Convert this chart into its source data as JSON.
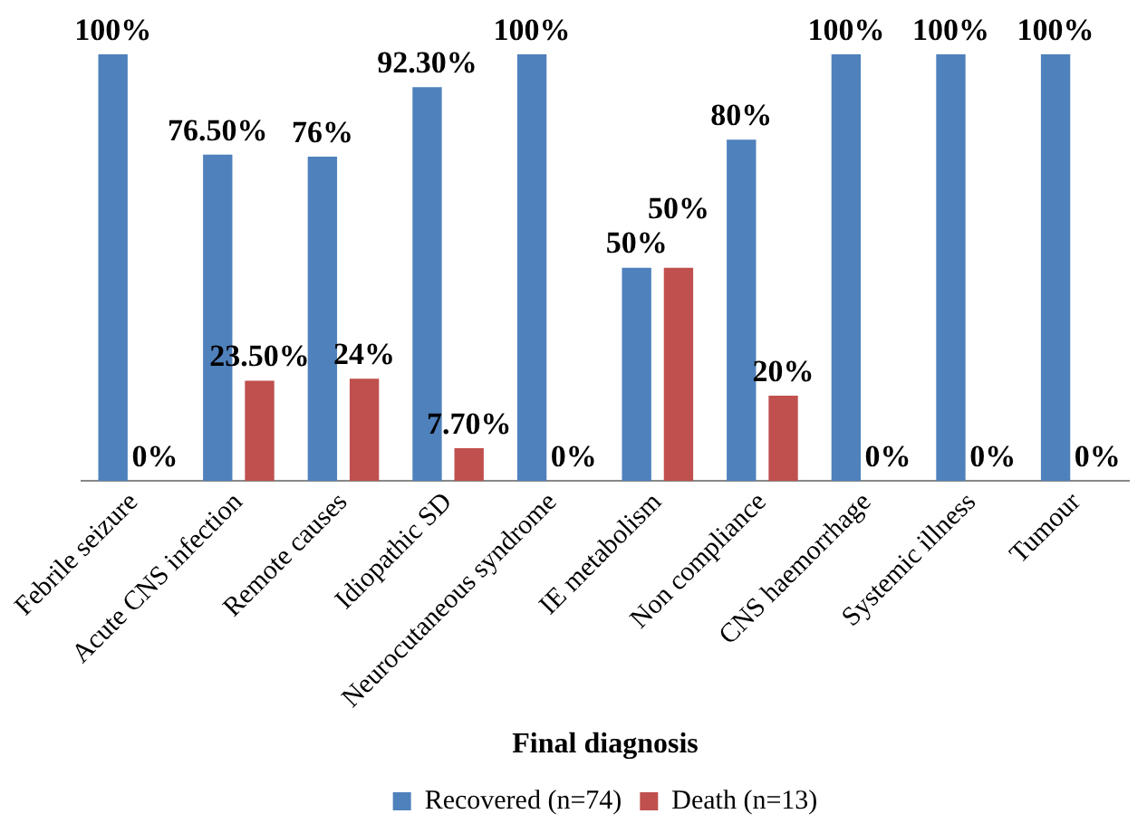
{
  "chart_data": {
    "type": "bar",
    "xlabel": "Final diagnosis",
    "categories": [
      "Febrile seizure",
      "Acute CNS infection",
      "Remote causes",
      "Idiopathic SD",
      "Neurocutaneous syndrome",
      "IE metabolism",
      "Non compliance",
      "CNS haemorrhage",
      "Systemic illness",
      "Tumour"
    ],
    "series": [
      {
        "name": "Recovered (n=74)",
        "color": "#4f81bd",
        "values": [
          100,
          76.5,
          76,
          92.3,
          100,
          50,
          80,
          100,
          100,
          100
        ],
        "value_labels": [
          "100%",
          "76.50%",
          "76%",
          "92.30%",
          "100%",
          "50%",
          "80%",
          "100%",
          "100%",
          "100%"
        ]
      },
      {
        "name": "Death (n=13)",
        "color": "#c0504d",
        "values": [
          0,
          23.5,
          24,
          7.7,
          0,
          50,
          20,
          0,
          0,
          0
        ],
        "value_labels": [
          "0%",
          "23.50%",
          "24%",
          "7.70%",
          "0%",
          "50%",
          "20%",
          "0%",
          "0%",
          "0%"
        ]
      }
    ],
    "tick_labels": "x",
    "grid": false,
    "legend": "bottom"
  }
}
